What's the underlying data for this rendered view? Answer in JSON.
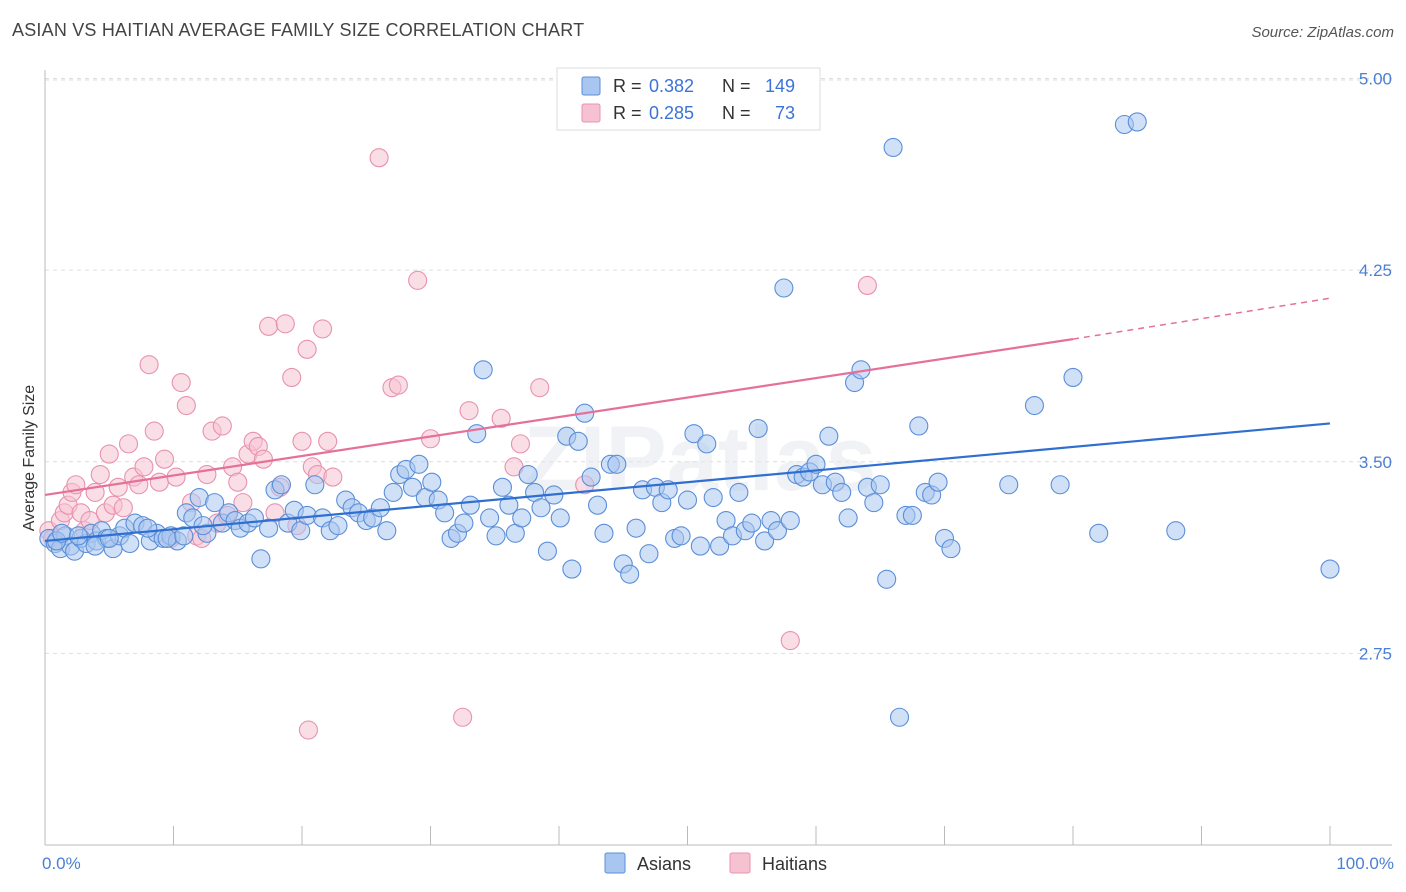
{
  "header": {
    "title": "ASIAN VS HAITIAN AVERAGE FAMILY SIZE CORRELATION CHART",
    "source": "Source: ZipAtlas.com"
  },
  "watermark": "ZIPatlas",
  "legend_box": {
    "rows": [
      {
        "r_label": "R =",
        "r_value": "0.382",
        "n_label": "N =",
        "n_value": "149",
        "color": "#7aa6e8"
      },
      {
        "r_label": "R =",
        "r_value": "0.285",
        "n_label": "N =",
        "n_value": "73",
        "color": "#f0a0bb"
      }
    ]
  },
  "colors": {
    "asian_fill": "#a9c6f0",
    "asian_stroke": "#5b8fd8",
    "asian_line": "#2f6fd0",
    "haitian_fill": "#f6c2d2",
    "haitian_stroke": "#e991b0",
    "haitian_line": "#e5709a",
    "tick_text": "#4a7fd4",
    "grid": "#dddddd"
  },
  "chart_data": {
    "type": "scatter",
    "title": "ASIAN VS HAITIAN AVERAGE FAMILY SIZE CORRELATION CHART",
    "xlabel": "",
    "ylabel": "Average Family Size",
    "xlim": [
      0,
      100
    ],
    "ylim": [
      2.0,
      5.15
    ],
    "x_tick_labels": [
      "0.0%",
      "100.0%"
    ],
    "y_ticks": [
      2.75,
      3.5,
      4.25,
      5.0
    ],
    "y_tick_labels": [
      "2.75",
      "3.50",
      "4.25",
      "5.00"
    ],
    "grid": true,
    "legend": "top-center",
    "series": [
      {
        "name": "Asians",
        "r": 0.382,
        "n": 149,
        "trend": {
          "x": [
            0,
            100
          ],
          "y": [
            3.19,
            3.65
          ]
        },
        "points": [
          [
            0.3,
            3.2
          ],
          [
            0.8,
            3.18
          ],
          [
            1.2,
            3.16
          ],
          [
            1.6,
            3.21
          ],
          [
            2.0,
            3.17
          ],
          [
            2.3,
            3.15
          ],
          [
            2.8,
            3.2
          ],
          [
            3.2,
            3.18
          ],
          [
            3.6,
            3.22
          ],
          [
            4.0,
            3.19
          ],
          [
            4.4,
            3.23
          ],
          [
            4.8,
            3.2
          ],
          [
            5.3,
            3.16
          ],
          [
            5.8,
            3.21
          ],
          [
            6.2,
            3.24
          ],
          [
            7.0,
            3.26
          ],
          [
            7.6,
            3.25
          ],
          [
            8.2,
            3.19
          ],
          [
            8.7,
            3.22
          ],
          [
            9.2,
            3.2
          ],
          [
            9.8,
            3.21
          ],
          [
            10.3,
            3.19
          ],
          [
            11.0,
            3.3
          ],
          [
            11.5,
            3.28
          ],
          [
            12.0,
            3.36
          ],
          [
            12.6,
            3.22
          ],
          [
            13.2,
            3.34
          ],
          [
            13.8,
            3.26
          ],
          [
            14.3,
            3.3
          ],
          [
            14.8,
            3.27
          ],
          [
            15.2,
            3.24
          ],
          [
            15.8,
            3.26
          ],
          [
            16.3,
            3.28
          ],
          [
            16.8,
            3.12
          ],
          [
            17.4,
            3.24
          ],
          [
            17.9,
            3.39
          ],
          [
            18.4,
            3.41
          ],
          [
            18.9,
            3.26
          ],
          [
            19.4,
            3.31
          ],
          [
            19.9,
            3.23
          ],
          [
            20.4,
            3.29
          ],
          [
            21.0,
            3.41
          ],
          [
            21.6,
            3.28
          ],
          [
            22.2,
            3.23
          ],
          [
            22.8,
            3.25
          ],
          [
            23.4,
            3.35
          ],
          [
            23.9,
            3.32
          ],
          [
            24.4,
            3.3
          ],
          [
            25.0,
            3.27
          ],
          [
            25.5,
            3.28
          ],
          [
            26.1,
            3.32
          ],
          [
            26.6,
            3.23
          ],
          [
            27.1,
            3.38
          ],
          [
            27.6,
            3.45
          ],
          [
            28.1,
            3.47
          ],
          [
            28.6,
            3.4
          ],
          [
            29.1,
            3.49
          ],
          [
            29.6,
            3.36
          ],
          [
            30.1,
            3.42
          ],
          [
            30.6,
            3.35
          ],
          [
            31.1,
            3.3
          ],
          [
            31.6,
            3.2
          ],
          [
            32.1,
            3.22
          ],
          [
            32.6,
            3.26
          ],
          [
            33.1,
            3.33
          ],
          [
            33.6,
            3.61
          ],
          [
            34.1,
            3.86
          ],
          [
            34.6,
            3.28
          ],
          [
            35.1,
            3.21
          ],
          [
            35.6,
            3.4
          ],
          [
            36.1,
            3.33
          ],
          [
            36.6,
            3.22
          ],
          [
            37.1,
            3.28
          ],
          [
            37.6,
            3.45
          ],
          [
            38.1,
            3.38
          ],
          [
            38.6,
            3.32
          ],
          [
            39.1,
            3.15
          ],
          [
            39.6,
            3.37
          ],
          [
            40.1,
            3.28
          ],
          [
            40.6,
            3.6
          ],
          [
            41.0,
            3.08
          ],
          [
            41.5,
            3.58
          ],
          [
            42.0,
            3.69
          ],
          [
            42.5,
            3.44
          ],
          [
            43.0,
            3.33
          ],
          [
            43.5,
            3.22
          ],
          [
            44.0,
            3.49
          ],
          [
            44.5,
            3.49
          ],
          [
            45.0,
            3.1
          ],
          [
            45.5,
            3.06
          ],
          [
            46.0,
            3.24
          ],
          [
            46.5,
            3.39
          ],
          [
            47.0,
            3.14
          ],
          [
            47.5,
            3.4
          ],
          [
            48.0,
            3.34
          ],
          [
            48.5,
            3.39
          ],
          [
            49.0,
            3.2
          ],
          [
            49.5,
            3.21
          ],
          [
            50.0,
            3.35
          ],
          [
            50.5,
            3.61
          ],
          [
            51.0,
            3.17
          ],
          [
            51.5,
            3.57
          ],
          [
            52.0,
            3.36
          ],
          [
            52.5,
            3.17
          ],
          [
            53.0,
            3.27
          ],
          [
            53.5,
            3.21
          ],
          [
            54.0,
            3.38
          ],
          [
            54.5,
            3.23
          ],
          [
            55.0,
            3.26
          ],
          [
            55.5,
            3.63
          ],
          [
            56.0,
            3.19
          ],
          [
            56.5,
            3.27
          ],
          [
            57.0,
            3.23
          ],
          [
            57.5,
            4.18
          ],
          [
            58.0,
            3.27
          ],
          [
            58.5,
            3.45
          ],
          [
            59.0,
            3.44
          ],
          [
            59.5,
            3.46
          ],
          [
            60.0,
            3.49
          ],
          [
            60.5,
            3.41
          ],
          [
            61.0,
            3.6
          ],
          [
            61.5,
            3.42
          ],
          [
            62.0,
            3.38
          ],
          [
            62.5,
            3.28
          ],
          [
            63.0,
            3.81
          ],
          [
            63.5,
            3.86
          ],
          [
            64.0,
            3.4
          ],
          [
            64.5,
            3.34
          ],
          [
            65.0,
            3.41
          ],
          [
            65.5,
            3.04
          ],
          [
            66.0,
            4.73
          ],
          [
            66.5,
            2.5
          ],
          [
            67.0,
            3.29
          ],
          [
            67.5,
            3.29
          ],
          [
            68.0,
            3.64
          ],
          [
            68.5,
            3.38
          ],
          [
            69.0,
            3.37
          ],
          [
            69.5,
            3.42
          ],
          [
            70.0,
            3.2
          ],
          [
            70.5,
            3.16
          ],
          [
            75.0,
            3.41
          ],
          [
            77.0,
            3.72
          ],
          [
            79.0,
            3.41
          ],
          [
            80.0,
            3.83
          ],
          [
            82.0,
            3.22
          ],
          [
            84.0,
            4.82
          ],
          [
            85.0,
            4.83
          ],
          [
            88.0,
            3.23
          ],
          [
            100.0,
            3.08
          ],
          [
            0.9,
            3.19
          ],
          [
            1.3,
            3.22
          ],
          [
            2.6,
            3.21
          ],
          [
            3.9,
            3.17
          ],
          [
            5.0,
            3.2
          ],
          [
            6.6,
            3.18
          ],
          [
            8.0,
            3.24
          ],
          [
            9.5,
            3.2
          ],
          [
            10.8,
            3.21
          ],
          [
            12.3,
            3.25
          ]
        ]
      },
      {
        "name": "Haitians",
        "r": 0.285,
        "n": 73,
        "trend": {
          "x": [
            0,
            80
          ],
          "y": [
            3.37,
            3.98
          ],
          "dashed_to": {
            "x": 100,
            "y": 4.14
          }
        },
        "points": [
          [
            0.3,
            3.23
          ],
          [
            0.6,
            3.2
          ],
          [
            0.9,
            3.19
          ],
          [
            1.2,
            3.27
          ],
          [
            1.5,
            3.3
          ],
          [
            1.8,
            3.33
          ],
          [
            2.1,
            3.38
          ],
          [
            2.4,
            3.41
          ],
          [
            2.8,
            3.3
          ],
          [
            3.1,
            3.23
          ],
          [
            3.5,
            3.27
          ],
          [
            3.9,
            3.38
          ],
          [
            4.3,
            3.45
          ],
          [
            4.7,
            3.3
          ],
          [
            5.0,
            3.53
          ],
          [
            5.3,
            3.33
          ],
          [
            5.7,
            3.4
          ],
          [
            6.1,
            3.32
          ],
          [
            6.5,
            3.57
          ],
          [
            6.9,
            3.44
          ],
          [
            7.3,
            3.41
          ],
          [
            7.7,
            3.48
          ],
          [
            8.1,
            3.88
          ],
          [
            8.5,
            3.62
          ],
          [
            8.9,
            3.42
          ],
          [
            9.3,
            3.51
          ],
          [
            9.8,
            3.2
          ],
          [
            10.2,
            3.44
          ],
          [
            10.6,
            3.81
          ],
          [
            11.0,
            3.72
          ],
          [
            11.4,
            3.34
          ],
          [
            11.8,
            3.21
          ],
          [
            12.2,
            3.2
          ],
          [
            12.6,
            3.45
          ],
          [
            13.0,
            3.62
          ],
          [
            13.4,
            3.26
          ],
          [
            13.8,
            3.64
          ],
          [
            14.2,
            3.29
          ],
          [
            14.6,
            3.48
          ],
          [
            15.0,
            3.42
          ],
          [
            15.4,
            3.34
          ],
          [
            15.8,
            3.53
          ],
          [
            16.2,
            3.58
          ],
          [
            16.6,
            3.56
          ],
          [
            17.0,
            3.51
          ],
          [
            17.4,
            4.03
          ],
          [
            17.9,
            3.3
          ],
          [
            18.3,
            3.4
          ],
          [
            18.7,
            4.04
          ],
          [
            19.2,
            3.83
          ],
          [
            19.6,
            3.25
          ],
          [
            20.0,
            3.58
          ],
          [
            20.4,
            3.94
          ],
          [
            20.8,
            3.48
          ],
          [
            21.2,
            3.45
          ],
          [
            21.6,
            4.02
          ],
          [
            22.0,
            3.58
          ],
          [
            22.4,
            3.44
          ],
          [
            27.0,
            3.79
          ],
          [
            27.5,
            3.8
          ],
          [
            29.0,
            4.21
          ],
          [
            30.0,
            3.59
          ],
          [
            33.0,
            3.7
          ],
          [
            35.5,
            3.67
          ],
          [
            36.5,
            3.48
          ],
          [
            37.0,
            3.57
          ],
          [
            38.5,
            3.79
          ],
          [
            42.0,
            3.41
          ],
          [
            26.0,
            4.69
          ],
          [
            20.5,
            2.45
          ],
          [
            32.5,
            2.5
          ],
          [
            58.0,
            2.8
          ],
          [
            64.0,
            4.19
          ]
        ]
      }
    ]
  },
  "bottom_legend": {
    "items": [
      {
        "label": "Asians"
      },
      {
        "label": "Haitians"
      }
    ]
  }
}
